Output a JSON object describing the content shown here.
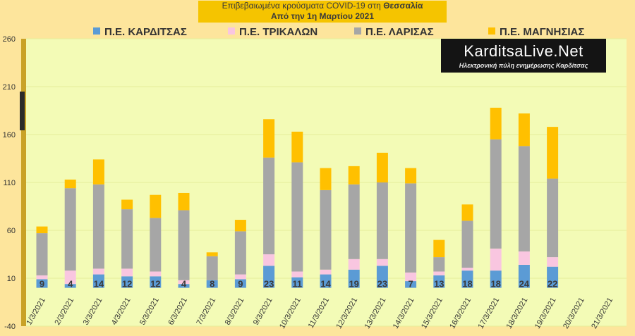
{
  "title": {
    "line1_prefix": "Επιβεβαιωμένα κρούσματα COVID-19 στη ",
    "line1_region": "Θεσσαλία",
    "line2": "Από την 1η Μαρτίου 2021"
  },
  "logo": {
    "name": "KarditsaLive.Net",
    "tagline": "Ηλεκτρονική πύλη ενημέρωσης Καρδίτσας"
  },
  "colors": {
    "background": "#fde59c",
    "plot_area": "#f3fbb6",
    "title_box": "#f5c400"
  },
  "chart_data": {
    "type": "bar",
    "stacked": true,
    "categories": [
      "1/3/2021",
      "2/3/2021",
      "3/3/2021",
      "4/3/2021",
      "5/3/2021",
      "6/3/2021",
      "7/3/2021",
      "8/3/2021",
      "9/3/2021",
      "10/3/2021",
      "11/3/2021",
      "12/3/2021",
      "13/3/2021",
      "14/3/2021",
      "15/3/2021",
      "16/3/2021",
      "17/3/2021",
      "18/3/2021",
      "19/3/2021",
      "20/3/2021",
      "21/3/2021"
    ],
    "series": [
      {
        "name": "Π.Ε. ΚΑΡΔΙΤΣΑΣ",
        "color": "#5b9bd5",
        "values": [
          9,
          4,
          14,
          12,
          12,
          4,
          8,
          9,
          23,
          11,
          14,
          19,
          23,
          7,
          13,
          18,
          18,
          24,
          22,
          null,
          null
        ]
      },
      {
        "name": "Π.Ε. ΤΡΙΚΑΛΩΝ",
        "color": "#f9c6e0",
        "values": [
          4,
          14,
          6,
          8,
          5,
          4,
          0,
          5,
          12,
          6,
          5,
          11,
          7,
          9,
          4,
          3,
          23,
          14,
          10,
          null,
          null
        ]
      },
      {
        "name": "Π.Ε. ΛΑΡΙΣΑΣ",
        "color": "#a6a6a6",
        "values": [
          44,
          86,
          88,
          62,
          56,
          73,
          25,
          45,
          101,
          114,
          83,
          78,
          80,
          93,
          15,
          49,
          114,
          110,
          82,
          null,
          null
        ]
      },
      {
        "name": "Π.Ε. ΜΑΓΝΗΣΙΑΣ",
        "color": "#ffc000",
        "values": [
          7,
          9,
          26,
          10,
          24,
          18,
          4,
          12,
          40,
          32,
          23,
          19,
          31,
          16,
          18,
          17,
          33,
          34,
          54,
          null,
          null
        ]
      }
    ],
    "data_labels_series": "Π.Ε. ΚΑΡΔΙΤΣΑΣ",
    "y_ticks": [
      -40,
      10,
      60,
      110,
      160,
      210,
      260
    ],
    "ylim": [
      -40,
      260
    ],
    "grid": true,
    "legend_position": "top"
  }
}
